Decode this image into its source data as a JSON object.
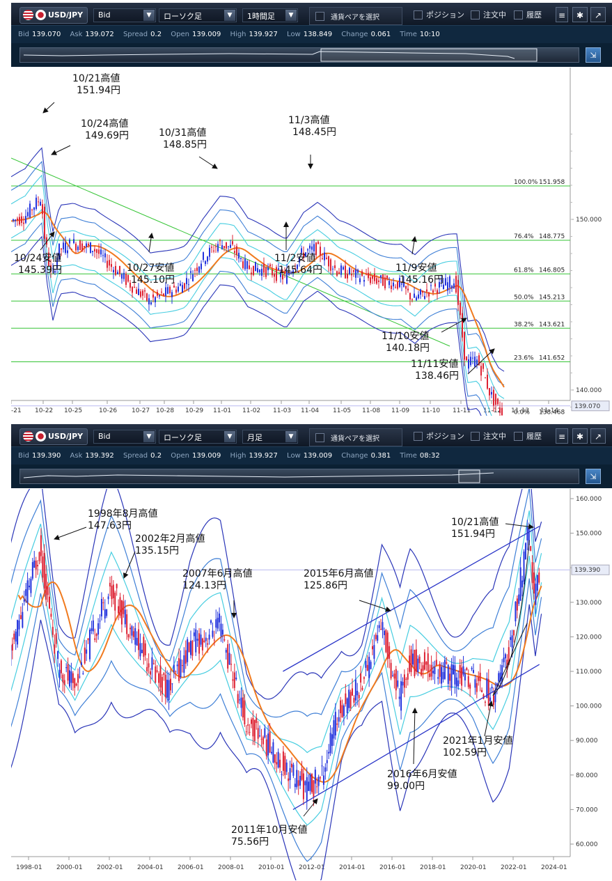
{
  "top_panel": {
    "toolbar": {
      "pair": "USD/JPY",
      "price_type": "Bid",
      "chart_style": "ローソク足",
      "timeframe": "1時間足",
      "select_pair": "通貨ペアを選択",
      "positions": "ポジション",
      "orders": "注文中",
      "history": "履歴"
    },
    "info": {
      "bid_label": "Bid",
      "bid": "139.070",
      "ask_label": "Ask",
      "ask": "139.072",
      "spread_label": "Spread",
      "spread": "0.2",
      "open_label": "Open",
      "open": "139.009",
      "high_label": "High",
      "high": "139.927",
      "low_label": "Low",
      "low": "138.849",
      "change_label": "Change",
      "change": "0.061",
      "time_label": "Time",
      "time": "10:10"
    },
    "y_ticks": [
      "150.000",
      "140.000"
    ],
    "current_price": "139.070",
    "x_ticks": [
      "-21",
      "10-22",
      "10-25",
      "10-26",
      "10-27",
      "10-28",
      "10-29",
      "11-01",
      "11-02",
      "11-03",
      "11-04",
      "11-05",
      "11-08",
      "11-09",
      "11-10",
      "11-11",
      "11-12",
      "11-13",
      "11-14"
    ],
    "fib_levels": [
      {
        "pct": "100.0%",
        "price": "151.958"
      },
      {
        "pct": "76.4%",
        "price": "148.775"
      },
      {
        "pct": "61.8%",
        "price": "146.805"
      },
      {
        "pct": "50.0%",
        "price": "145.213"
      },
      {
        "pct": "38.2%",
        "price": "143.621"
      },
      {
        "pct": "23.6%",
        "price": "141.652"
      },
      {
        "pct": "0.0%",
        "price": "138.468"
      }
    ],
    "annotations": [
      [
        "10/21高値",
        "151.94円"
      ],
      [
        "10/24高値",
        "149.69円"
      ],
      [
        "10/31高値",
        "148.85円"
      ],
      [
        "11/3高値",
        "148.45円"
      ],
      [
        "10/24安値",
        "145.39円"
      ],
      [
        "10/27安値",
        "145.10円"
      ],
      [
        "11/2安値",
        "145.64円"
      ],
      [
        "11/9安値",
        "145.16円"
      ],
      [
        "11/10安値",
        "140.18円"
      ],
      [
        "11/11安値",
        "138.46円"
      ]
    ]
  },
  "bottom_panel": {
    "toolbar": {
      "pair": "USD/JPY",
      "price_type": "Bid",
      "chart_style": "ローソク足",
      "timeframe": "月足",
      "select_pair": "通貨ペアを選択",
      "positions": "ポジション",
      "orders": "注文中",
      "history": "履歴"
    },
    "info": {
      "bid_label": "Bid",
      "bid": "139.390",
      "ask_label": "Ask",
      "ask": "139.392",
      "spread_label": "Spread",
      "spread": "0.2",
      "open_label": "Open",
      "open": "139.009",
      "high_label": "High",
      "high": "139.927",
      "low_label": "Low",
      "low": "139.009",
      "change_label": "Change",
      "change": "0.381",
      "time_label": "Time",
      "time": "08:32"
    },
    "y_ticks": [
      "160.000",
      "150.000",
      "140.000",
      "130.000",
      "120.000",
      "110.000",
      "100.000",
      "90.000",
      "80.000",
      "70.000",
      "60.000"
    ],
    "current_price": "139.390",
    "x_ticks": [
      "1998-01",
      "2000-01",
      "2002-01",
      "2004-01",
      "2006-01",
      "2008-01",
      "2010-01",
      "2012-01",
      "2014-01",
      "2016-01",
      "2018-01",
      "2020-01",
      "2022-01",
      "2024-01"
    ],
    "annotations": [
      [
        "1998年8月高値",
        "147.63円"
      ],
      [
        "2002年2月高値",
        "135.15円"
      ],
      [
        "2007年6月高値",
        "124.13円"
      ],
      [
        "2015年6月高値",
        "125.86円"
      ],
      [
        "10/21高値",
        "151.94円"
      ],
      [
        "2021年1月安値",
        "102.59円"
      ],
      [
        "2016年6月安値",
        "99.00円"
      ],
      [
        "2011年10月安値",
        "75.56円"
      ]
    ]
  },
  "colors": {
    "ma": "#f07a1e",
    "band_outer": "#2a35b8",
    "band_mid": "#3e7fd6",
    "band_inner": "#46cde0",
    "fib_line": "#33c433",
    "up_candle": "#2233dd",
    "down_candle": "#dd2233"
  }
}
